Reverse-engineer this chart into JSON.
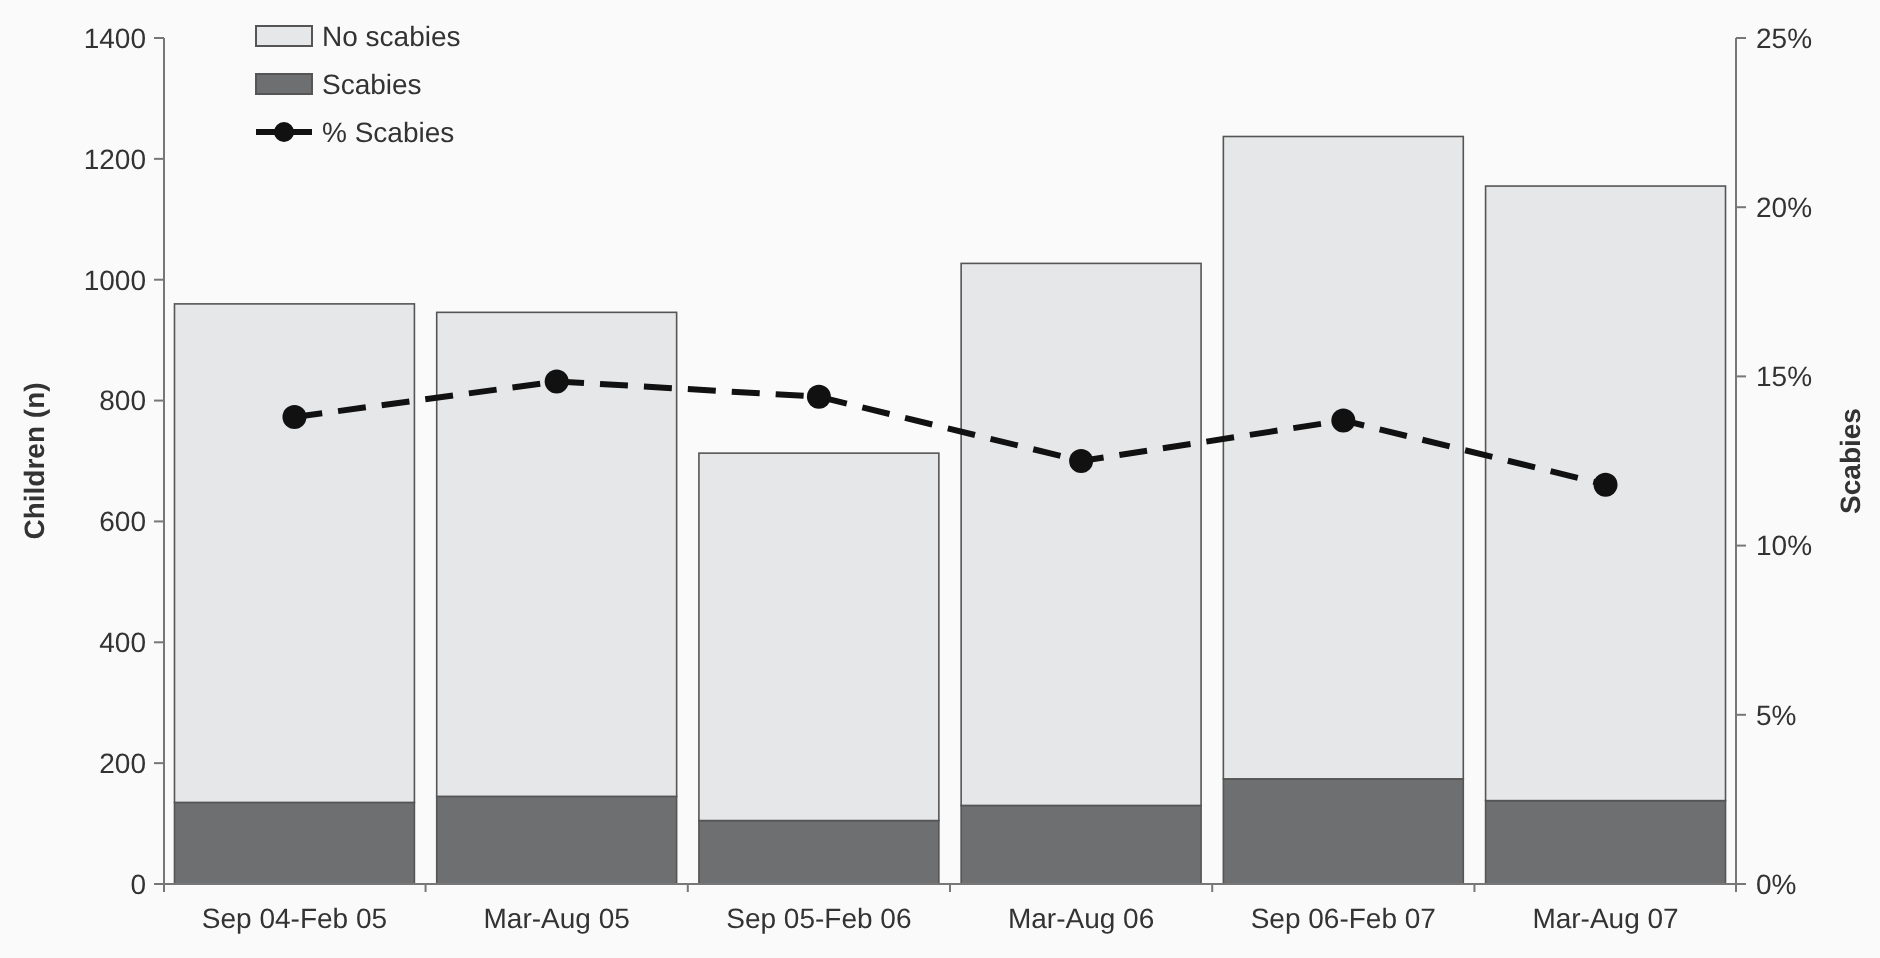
{
  "chart_data": {
    "type": "bar",
    "stacked": true,
    "categories": [
      "Sep 04-Feb 05",
      "Mar-Aug 05",
      "Sep 05-Feb 06",
      "Mar-Aug 06",
      "Sep 06-Feb 07",
      "Mar-Aug 07"
    ],
    "ylabel": "Children (n)",
    "y2label": "Scabies",
    "ylim": [
      0,
      1400
    ],
    "yticks": [
      0,
      200,
      400,
      600,
      800,
      1000,
      1200,
      1400
    ],
    "y2lim": [
      0,
      25
    ],
    "y2ticks": [
      {
        "value": 0,
        "label": "0%"
      },
      {
        "value": 5,
        "label": "5%"
      },
      {
        "value": 10,
        "label": "10%"
      },
      {
        "value": 15,
        "label": "15%"
      },
      {
        "value": 20,
        "label": "20%"
      },
      {
        "value": 25,
        "label": "25%"
      }
    ],
    "series": [
      {
        "name": "Scabies",
        "color": "#6e6f71",
        "values": [
          135,
          145,
          105,
          130,
          174,
          138
        ]
      },
      {
        "name": "No scabies",
        "color": "#e6e7e8",
        "values": [
          825,
          801,
          608,
          897,
          1063,
          1017
        ]
      },
      {
        "name": "% Scabies",
        "type": "line",
        "axis": "y2",
        "color": "#111111",
        "marker": "circle",
        "line_style": "dashed",
        "values": [
          13.8,
          14.85,
          14.4,
          12.5,
          13.7,
          11.8
        ]
      }
    ],
    "legend": "top left",
    "grid": false
  }
}
